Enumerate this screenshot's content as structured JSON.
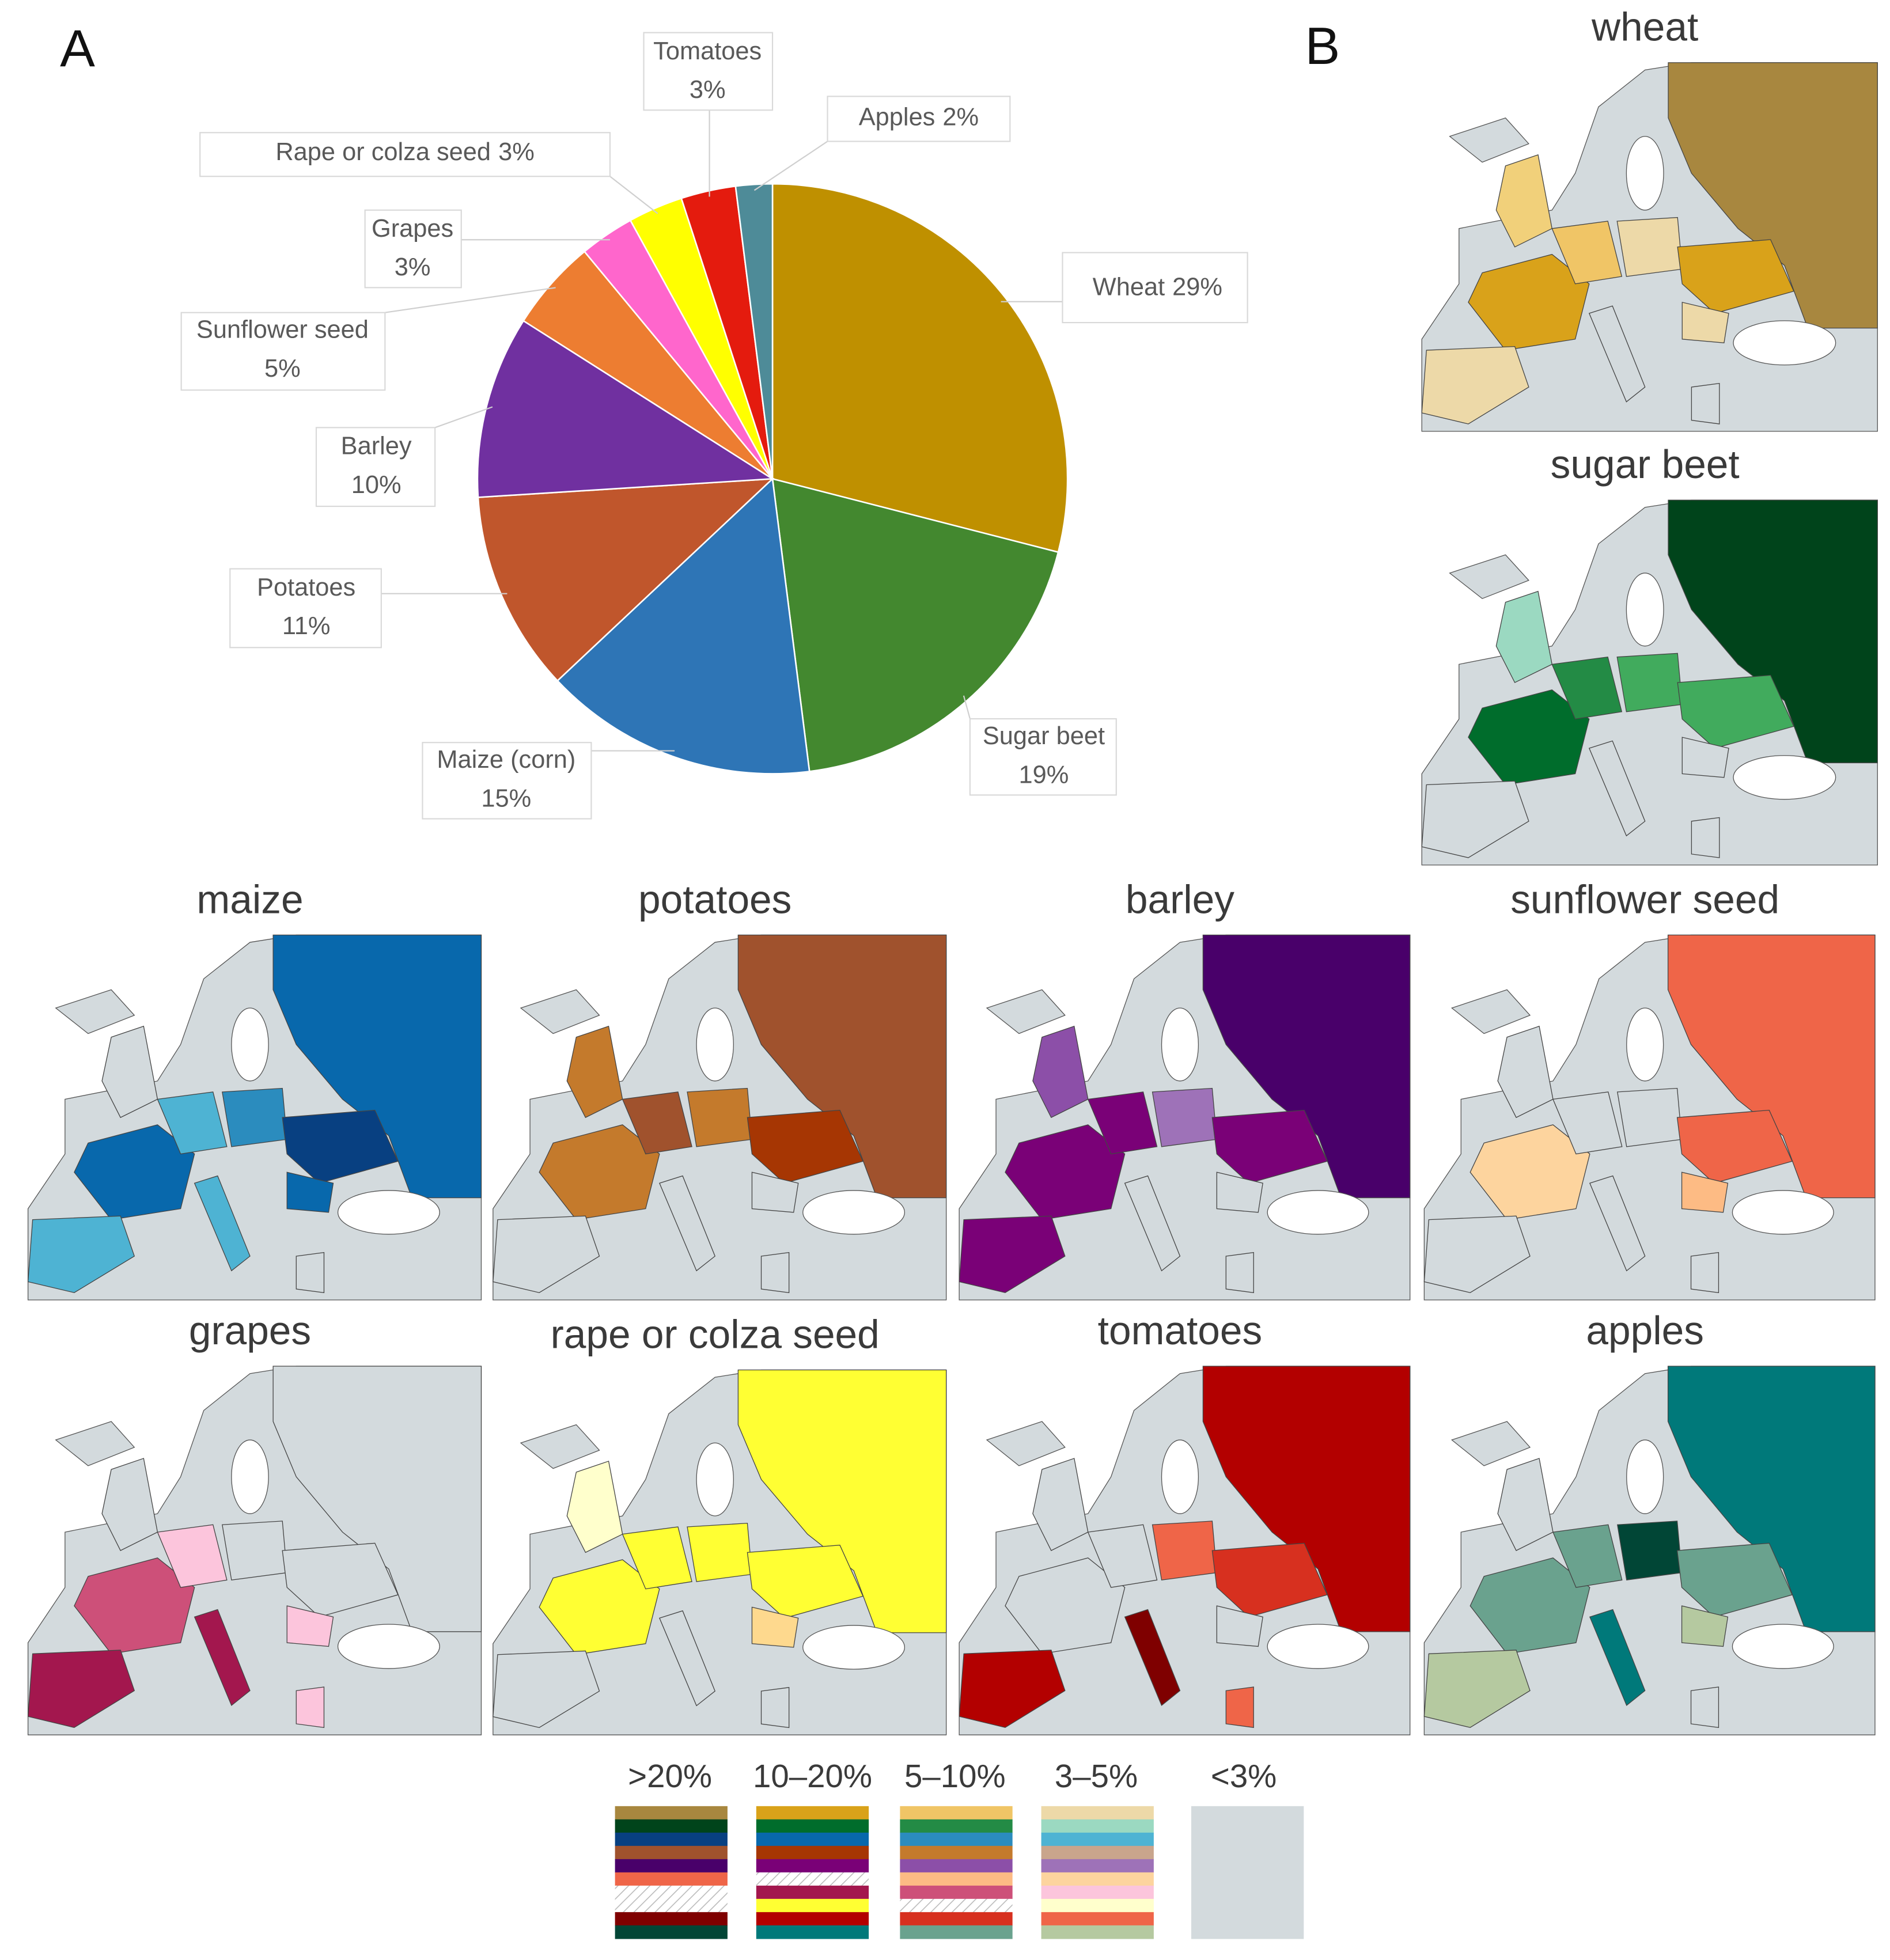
{
  "panel_labels": [
    "A",
    "B"
  ],
  "chart_data": [
    {
      "type": "pie",
      "categories": [
        "Wheat",
        "Sugar beet",
        "Maize (corn)",
        "Potatoes",
        "Barley",
        "Sunflower seed",
        "Grapes",
        "Rape or colza seed",
        "Tomatoes",
        "Apples"
      ],
      "values": [
        29,
        19,
        15,
        11,
        10,
        5,
        3,
        3,
        3,
        2
      ],
      "value_labels": [
        "29%",
        "19%",
        "15%",
        "11%",
        "10%",
        "5%",
        "3%",
        "3%",
        "3%",
        "2%"
      ],
      "colors": [
        "#bf9000",
        "#43882f",
        "#2e75b6",
        "#c0562c",
        "#7030a0",
        "#ed7d31",
        "#ff66cc",
        "#ffff00",
        "#e41b0e",
        "#4e8b98"
      ]
    },
    {
      "type": "map",
      "title": "wheat",
      "colors": [
        "#a8873f",
        "#f1d07a",
        "#d9a21a",
        "#edd9a8",
        "#f0c566",
        "#edd9a8",
        "#d9a21a",
        null,
        "#edd9a8",
        null
      ]
    },
    {
      "type": "map",
      "title": "sugar beet",
      "colors": [
        "#00441b",
        "#9bd9c1",
        "#006d2c",
        null,
        "#238b45",
        "#41ab5d",
        "#41ab5d",
        null,
        null,
        null
      ]
    },
    {
      "type": "map",
      "title": "maize",
      "colors": [
        "#0868ac",
        null,
        "#0868ac",
        "#4eb3d3",
        "#4eb3d3",
        "#2b8cbe",
        "#084081",
        "#4eb3d3",
        "#0868ac",
        null
      ]
    },
    {
      "type": "map",
      "title": "potatoes",
      "colors": [
        "#a0522d",
        "#c47a2c",
        "#c47a2c",
        null,
        "#a0522d",
        "#c47a2c",
        "#a63603",
        null,
        null,
        null
      ]
    },
    {
      "type": "map",
      "title": "barley",
      "colors": [
        "#49006a",
        "#8c4fa8",
        "#7a0177",
        "#7a0177",
        "#7a0177",
        "#9e72b8",
        "#7a0177",
        null,
        null,
        null
      ]
    },
    {
      "type": "map",
      "title": "sunflower seed",
      "colors": [
        "#ef6548",
        null,
        "#fdd49e",
        null,
        null,
        null,
        "#ef6548",
        null,
        "#fdbb84",
        null
      ]
    },
    {
      "type": "map",
      "title": "grapes",
      "colors": [
        null,
        null,
        "#cd5079",
        "#a3174e",
        "#fcc5dc",
        null,
        null,
        "#a3174e",
        "#fcc5dc",
        "#fcc5dc"
      ]
    },
    {
      "type": "map",
      "title": "rape or colza seed",
      "colors": [
        "#ffff33",
        "#ffffcc",
        "#ffff33",
        null,
        "#ffff33",
        "#ffff33",
        "#ffff33",
        null,
        "#fed98e",
        null
      ]
    },
    {
      "type": "map",
      "title": "tomatoes",
      "colors": [
        "#b30000",
        null,
        null,
        "#b30000",
        null,
        "#ef6548",
        "#d7301f",
        "#7f0000",
        null,
        "#ef6548"
      ]
    },
    {
      "type": "map",
      "title": "apples",
      "colors": [
        "#00797a",
        null,
        "#6aa28e",
        "#b5c9a0",
        "#6aa28e",
        "#014636",
        "#6aa28e",
        "#00797a",
        "#b5c9a0",
        null
      ]
    }
  ],
  "legend": {
    "bins": [
      {
        "label": ">20%",
        "colors": [
          "#a8873f",
          "#00441b",
          "#084081",
          "#a0522d",
          "#49006a",
          "#ef6548",
          null,
          null,
          "#7f0000",
          "#014636"
        ]
      },
      {
        "label": "10–20%",
        "colors": [
          "#d9a21a",
          "#006d2c",
          "#0868ac",
          "#a63603",
          "#7a0177",
          null,
          "#a3174e",
          "#ffff33",
          "#b30000",
          "#00797a"
        ]
      },
      {
        "label": "5–10%",
        "colors": [
          "#f0c566",
          "#238b45",
          "#2b8cbe",
          "#c47a2c",
          "#8c4fa8",
          "#fdbb84",
          "#cd5079",
          null,
          "#d7301f",
          "#6aa28e"
        ]
      },
      {
        "label": "3–5%",
        "colors": [
          "#edd9a8",
          "#9bd9c1",
          "#4eb3d3",
          "#c9a58c",
          "#9e72b8",
          "#fdd49e",
          "#fcc5dc",
          "#ffffcc",
          "#ef6548",
          "#b5c9a0"
        ]
      },
      {
        "label": "<3%",
        "colors": [
          "#d3dadd"
        ]
      }
    ]
  }
}
